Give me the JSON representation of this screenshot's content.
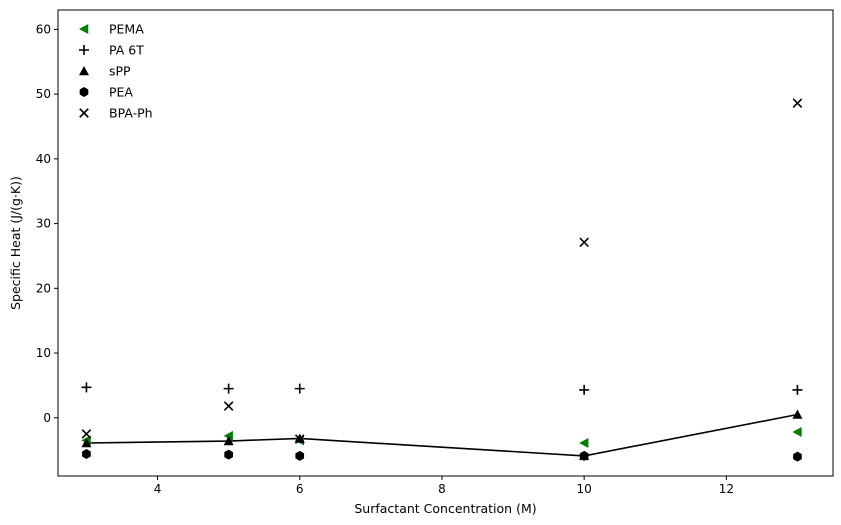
{
  "chart_data": {
    "type": "scatter",
    "title": "",
    "xlabel": "Surfactant Concentration (M)",
    "ylabel": "Specific Heat (J/(g·K))",
    "xlim": [
      2.6,
      13.5
    ],
    "ylim": [
      -9.0,
      63.0
    ],
    "xticks": [
      4,
      6,
      8,
      10,
      12
    ],
    "yticks": [
      0,
      10,
      20,
      30,
      40,
      50,
      60
    ],
    "grid": false,
    "legend_position": "top-left",
    "series": [
      {
        "name": "PEMA",
        "marker": "triangle-left",
        "color": "#008000",
        "x": [
          3,
          5,
          6,
          10,
          13
        ],
        "y": [
          -3.5,
          -2.8,
          -3.5,
          -3.9,
          -2.2
        ]
      },
      {
        "name": "PA 6T",
        "marker": "plus",
        "color": "#000000",
        "x": [
          3,
          5,
          6,
          10,
          13
        ],
        "y": [
          4.7,
          4.5,
          4.5,
          4.3,
          4.3
        ]
      },
      {
        "name": "sPP",
        "marker": "triangle-up",
        "color": "#000000",
        "line": true,
        "x": [
          3,
          5,
          6,
          10,
          13
        ],
        "y": [
          -3.9,
          -3.6,
          -3.2,
          -5.9,
          0.5
        ]
      },
      {
        "name": "PEA",
        "marker": "hexagon",
        "color": "#000000",
        "x": [
          3,
          5,
          6,
          10,
          13
        ],
        "y": [
          -5.6,
          -5.7,
          -5.9,
          -5.9,
          -6.0
        ]
      },
      {
        "name": "BPA-Ph",
        "marker": "x",
        "color": "#000000",
        "x": [
          3,
          5,
          6,
          10,
          13
        ],
        "y": [
          -2.5,
          1.8,
          -3.3,
          27.1,
          48.6
        ]
      }
    ]
  }
}
